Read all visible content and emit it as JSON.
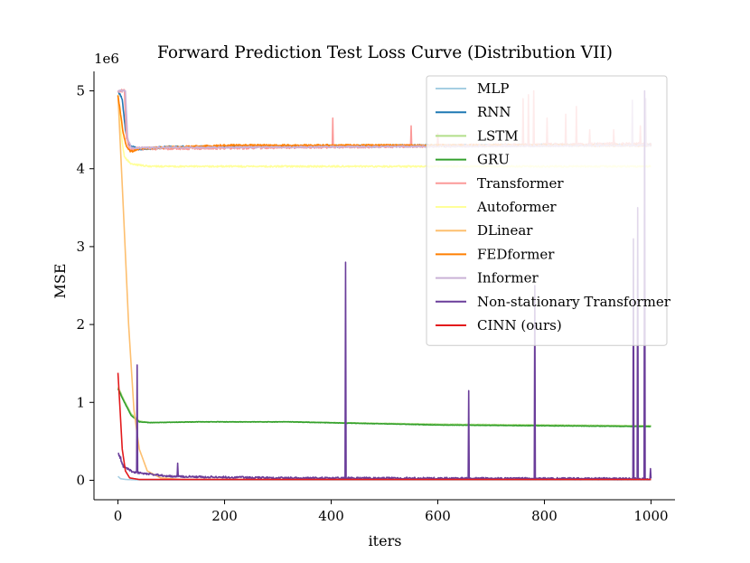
{
  "chart_data": {
    "type": "line",
    "title": "Forward Prediction Test Loss Curve (Distribution VII)",
    "xlabel": "iters",
    "ylabel": "MSE",
    "y_multiplier": "1e6",
    "xlim": [
      -45,
      1045
    ],
    "ylim": [
      -0.25,
      5.25
    ],
    "xticks": [
      0,
      200,
      400,
      600,
      800,
      1000
    ],
    "yticks": [
      0,
      1,
      2,
      3,
      4,
      5
    ],
    "grid": false,
    "legend_position": "top-right",
    "series": [
      {
        "name": "MLP",
        "color": "#a6cee3",
        "points": [
          [
            0,
            0.05
          ],
          [
            5,
            0.02
          ],
          [
            15,
            0.01
          ],
          [
            40,
            0.005
          ],
          [
            1000,
            0.005
          ]
        ],
        "noise": 0
      },
      {
        "name": "RNN",
        "color": "#1f78b4",
        "points": [
          [
            0,
            5.0
          ],
          [
            8,
            4.9
          ],
          [
            14,
            4.5
          ],
          [
            20,
            4.3
          ],
          [
            40,
            4.25
          ],
          [
            100,
            4.28
          ],
          [
            1000,
            4.31
          ]
        ],
        "noise": 0.015
      },
      {
        "name": "LSTM",
        "color": "#b2df8a",
        "points": [
          [
            0,
            1.2
          ],
          [
            10,
            1.05
          ],
          [
            25,
            0.85
          ],
          [
            40,
            0.76
          ],
          [
            60,
            0.74
          ],
          [
            150,
            0.75
          ],
          [
            320,
            0.75
          ],
          [
            600,
            0.72
          ],
          [
            1000,
            0.7
          ]
        ],
        "noise": 0.003
      },
      {
        "name": "GRU",
        "color": "#33a02c",
        "points": [
          [
            0,
            1.18
          ],
          [
            10,
            1.03
          ],
          [
            25,
            0.83
          ],
          [
            40,
            0.75
          ],
          [
            60,
            0.74
          ],
          [
            150,
            0.75
          ],
          [
            320,
            0.75
          ],
          [
            600,
            0.71
          ],
          [
            1000,
            0.69
          ]
        ],
        "noise": 0.003
      },
      {
        "name": "Transformer",
        "color": "#fb9a99",
        "points": [
          [
            0,
            5.0
          ],
          [
            12,
            5.0
          ],
          [
            16,
            4.4
          ],
          [
            22,
            4.25
          ],
          [
            40,
            4.26
          ],
          [
            1000,
            4.32
          ]
        ],
        "noise": 0.02,
        "spikes": [
          [
            403,
            4.65
          ],
          [
            550,
            4.55
          ],
          [
            600,
            4.45
          ],
          [
            760,
            4.9
          ],
          [
            770,
            4.95
          ],
          [
            780,
            5.0
          ],
          [
            805,
            4.65
          ],
          [
            840,
            4.7
          ],
          [
            860,
            4.8
          ],
          [
            885,
            4.5
          ],
          [
            930,
            4.5
          ],
          [
            980,
            4.55
          ]
        ]
      },
      {
        "name": "Autoformer",
        "color": "#ffff99",
        "points": [
          [
            0,
            4.95
          ],
          [
            5,
            4.5
          ],
          [
            12,
            4.15
          ],
          [
            25,
            4.06
          ],
          [
            60,
            4.03
          ],
          [
            1000,
            4.03
          ]
        ],
        "noise": 0.01
      },
      {
        "name": "DLinear",
        "color": "#fdbf6f",
        "points": [
          [
            0,
            4.95
          ],
          [
            10,
            3.5
          ],
          [
            20,
            2.0
          ],
          [
            30,
            0.9
          ],
          [
            40,
            0.4
          ],
          [
            55,
            0.12
          ],
          [
            80,
            0.03
          ],
          [
            120,
            0.01
          ],
          [
            1000,
            0.01
          ]
        ],
        "noise": 0
      },
      {
        "name": "FEDformer",
        "color": "#ff7f00",
        "points": [
          [
            0,
            4.95
          ],
          [
            5,
            4.7
          ],
          [
            10,
            4.45
          ],
          [
            16,
            4.28
          ],
          [
            24,
            4.22
          ],
          [
            40,
            4.26
          ],
          [
            200,
            4.3
          ],
          [
            1000,
            4.3
          ]
        ],
        "noise": 0.012
      },
      {
        "name": "Informer",
        "color": "#cab2d6",
        "points": [
          [
            0,
            5.0
          ],
          [
            14,
            5.0
          ],
          [
            18,
            4.4
          ],
          [
            25,
            4.26
          ],
          [
            40,
            4.27
          ],
          [
            1000,
            4.3
          ]
        ],
        "noise": 0.01,
        "spikes": [
          [
            965,
            4.88
          ],
          [
            990,
            4.9
          ]
        ]
      },
      {
        "name": "Non-stationary Transformer",
        "color": "#6a3d9a",
        "points": [
          [
            0,
            0.36
          ],
          [
            10,
            0.18
          ],
          [
            30,
            0.1
          ],
          [
            100,
            0.05
          ],
          [
            300,
            0.03
          ],
          [
            1000,
            0.02
          ]
        ],
        "noise": 0.012,
        "spikes": [
          [
            5,
            0.3
          ],
          [
            36,
            1.48
          ],
          [
            112,
            0.22
          ],
          [
            427,
            2.8
          ],
          [
            658,
            1.15
          ],
          [
            782,
            2.5
          ],
          [
            967,
            3.1
          ],
          [
            975,
            3.5
          ],
          [
            988,
            5.0
          ],
          [
            999,
            0.15
          ]
        ]
      },
      {
        "name": "CINN (ours)",
        "color": "#e31a1c",
        "points": [
          [
            0,
            1.38
          ],
          [
            4,
            0.9
          ],
          [
            8,
            0.4
          ],
          [
            14,
            0.12
          ],
          [
            22,
            0.03
          ],
          [
            40,
            0.01
          ],
          [
            1000,
            0.01
          ]
        ],
        "noise": 0
      }
    ]
  }
}
